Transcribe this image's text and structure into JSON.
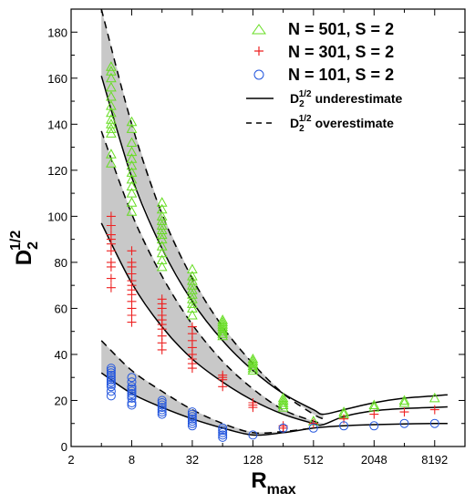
{
  "chart_data": {
    "type": "scatter",
    "title": "",
    "xscale": "log2",
    "xlim": [
      2,
      16384
    ],
    "ylim": [
      0,
      190
    ],
    "grid": false,
    "legend_position": "top-right",
    "xlabel": {
      "main": "R",
      "sub": "max"
    },
    "ylabel": {
      "main": "D",
      "sub": "2",
      "sup": "1/2"
    },
    "xticks": [
      {
        "value": 2,
        "label": "2"
      },
      {
        "value": 8,
        "label": "8"
      },
      {
        "value": 32,
        "label": "32"
      },
      {
        "value": 128,
        "label": "128"
      },
      {
        "value": 512,
        "label": "512"
      },
      {
        "value": 2048,
        "label": "2048"
      },
      {
        "value": 8192,
        "label": "8192"
      }
    ],
    "xminor": [
      4,
      16,
      64,
      256,
      1024,
      4096
    ],
    "yticks": [
      {
        "value": 0,
        "label": "0"
      },
      {
        "value": 20,
        "label": "20"
      },
      {
        "value": 40,
        "label": "40"
      },
      {
        "value": 60,
        "label": "60"
      },
      {
        "value": 80,
        "label": "80"
      },
      {
        "value": 100,
        "label": "100"
      },
      {
        "value": 120,
        "label": "120"
      },
      {
        "value": 140,
        "label": "140"
      },
      {
        "value": 160,
        "label": "160"
      },
      {
        "value": 180,
        "label": "180"
      }
    ],
    "series": [
      {
        "name": "N = 501, S = 2",
        "marker": "triangle",
        "color": "#66dd22",
        "groups": [
          {
            "x": 5,
            "values": [
              123,
              127,
              136,
              138,
              140,
              142,
              145,
              148,
              152,
              156,
              160,
              163,
              165
            ]
          },
          {
            "x": 8,
            "values": [
              102,
              106,
              110,
              113,
              116,
              119,
              122,
              125,
              128,
              132,
              138,
              141
            ]
          },
          {
            "x": 16,
            "values": [
              78,
              81,
              84,
              87,
              90,
              92,
              94,
              96,
              98,
              100,
              103,
              106
            ]
          },
          {
            "x": 32,
            "values": [
              57,
              60,
              62,
              64,
              66,
              68,
              70,
              72,
              74,
              77
            ]
          },
          {
            "x": 64,
            "values": [
              48,
              49,
              50,
              51,
              52,
              53,
              54,
              55
            ]
          },
          {
            "x": 128,
            "values": [
              33,
              34,
              35,
              36,
              37,
              38
            ]
          },
          {
            "x": 256,
            "values": [
              17,
              18,
              19,
              20,
              21
            ]
          },
          {
            "x": 512,
            "values": [
              11
            ]
          },
          {
            "x": 1024,
            "values": [
              14,
              15
            ]
          },
          {
            "x": 2048,
            "values": [
              17,
              18
            ]
          },
          {
            "x": 4096,
            "values": [
              19,
              20
            ]
          },
          {
            "x": 8192,
            "values": [
              21
            ]
          }
        ]
      },
      {
        "name": "N = 301, S = 2",
        "marker": "plus",
        "color": "#ee2222",
        "groups": [
          {
            "x": 5,
            "values": [
              69,
              73,
              78,
              80,
              85,
              88,
              90,
              92,
              96,
              100
            ]
          },
          {
            "x": 8,
            "values": [
              54,
              57,
              60,
              63,
              66,
              68,
              70,
              72,
              75,
              78,
              80,
              85
            ]
          },
          {
            "x": 16,
            "values": [
              42,
              45,
              48,
              51,
              53,
              55,
              57,
              60,
              62,
              64
            ]
          },
          {
            "x": 32,
            "values": [
              34,
              36,
              38,
              40,
              43,
              46,
              49,
              52
            ]
          },
          {
            "x": 64,
            "values": [
              26,
              29,
              30,
              31
            ]
          },
          {
            "x": 128,
            "values": [
              17,
              18,
              19
            ]
          },
          {
            "x": 256,
            "values": [
              8,
              9
            ]
          },
          {
            "x": 512,
            "values": [
              10
            ]
          },
          {
            "x": 1024,
            "values": [
              12
            ]
          },
          {
            "x": 2048,
            "values": [
              14
            ]
          },
          {
            "x": 4096,
            "values": [
              15
            ]
          },
          {
            "x": 8192,
            "values": [
              16
            ]
          }
        ]
      },
      {
        "name": "N = 101, S = 2",
        "marker": "circle",
        "color": "#2255dd",
        "groups": [
          {
            "x": 5,
            "values": [
              22,
              24,
              26,
              27,
              28,
              29,
              30,
              31,
              32,
              33,
              34
            ]
          },
          {
            "x": 8,
            "values": [
              18,
              19,
              21,
              22,
              23,
              24,
              25,
              26,
              28,
              30
            ]
          },
          {
            "x": 16,
            "values": [
              14,
              15,
              16,
              17,
              18,
              19,
              20
            ]
          },
          {
            "x": 32,
            "values": [
              9,
              10,
              11,
              12,
              13,
              14,
              15
            ]
          },
          {
            "x": 64,
            "values": [
              4,
              5,
              6,
              7,
              8
            ]
          },
          {
            "x": 128,
            "values": [
              5
            ]
          },
          {
            "x": 256,
            "values": [
              8
            ]
          },
          {
            "x": 512,
            "values": [
              8
            ]
          },
          {
            "x": 1024,
            "values": [
              9
            ]
          },
          {
            "x": 2048,
            "values": [
              9
            ]
          },
          {
            "x": 4096,
            "values": [
              10
            ]
          },
          {
            "x": 8192,
            "values": [
              10
            ]
          }
        ]
      }
    ],
    "curves": [
      {
        "name": "D2^1/2 underestimate",
        "style": "solid",
        "label": "underestimate",
        "bands": [
          {
            "x": [
              4,
              8,
              16,
              32,
              64,
              128,
              256,
              512,
              640,
              1024,
              2048,
              4096,
              8192,
              11000
            ],
            "y": [
              161,
              117,
              86,
              63,
              46,
              33,
              23,
              16,
              14,
              16,
              19,
              21,
              22,
              22.5
            ]
          },
          {
            "x": [
              4,
              8,
              16,
              32,
              64,
              128,
              256,
              512,
              640,
              1024,
              2048,
              4096,
              8192,
              11000
            ],
            "y": [
              97,
              71,
              52,
              38,
              28,
              20,
              14,
              10,
              9.5,
              13,
              15.5,
              16.5,
              17,
              17.2
            ]
          },
          {
            "x": [
              4,
              8,
              16,
              32,
              64,
              128,
              256,
              512,
              1024,
              2048,
              4096,
              8192,
              11000
            ],
            "y": [
              32,
              23,
              17,
              12,
              8,
              5,
              6,
              8,
              9,
              9.5,
              9.8,
              10,
              10
            ]
          }
        ]
      },
      {
        "name": "D2^1/2 overestimate",
        "style": "dashed",
        "label": "overestimate",
        "bands": [
          {
            "x": [
              4,
              8,
              16,
              32,
              64,
              128,
              256,
              512,
              640
            ],
            "y": [
              190,
              140,
              101,
              73,
              52,
              36,
              23,
              14,
              12
            ]
          },
          {
            "x": [
              4,
              8,
              16,
              32,
              64,
              128,
              256,
              512,
              640
            ],
            "y": [
              137,
              101,
              74,
              53,
              37,
              25,
              16,
              11,
              10
            ]
          },
          {
            "x": [
              4,
              8,
              16,
              32,
              64,
              128,
              256,
              512
            ],
            "y": [
              46,
              33,
              24,
              16,
              10,
              6,
              6.5,
              8
            ]
          }
        ]
      }
    ],
    "legend": {
      "entries": [
        {
          "text": "N = 501, S = 2",
          "marker": "triangle"
        },
        {
          "text": "N = 301, S = 2",
          "marker": "plus"
        },
        {
          "text": "N = 101, S = 2",
          "marker": "circle"
        },
        {
          "text": "underestimate",
          "prefix": {
            "main": "D",
            "sub": "2",
            "sup": "1/2"
          },
          "line": "solid"
        },
        {
          "text": "overestimate",
          "prefix": {
            "main": "D",
            "sub": "2",
            "sup": "1/2"
          },
          "line": "dashed"
        }
      ]
    },
    "band_fill": "#c8c8c8"
  }
}
